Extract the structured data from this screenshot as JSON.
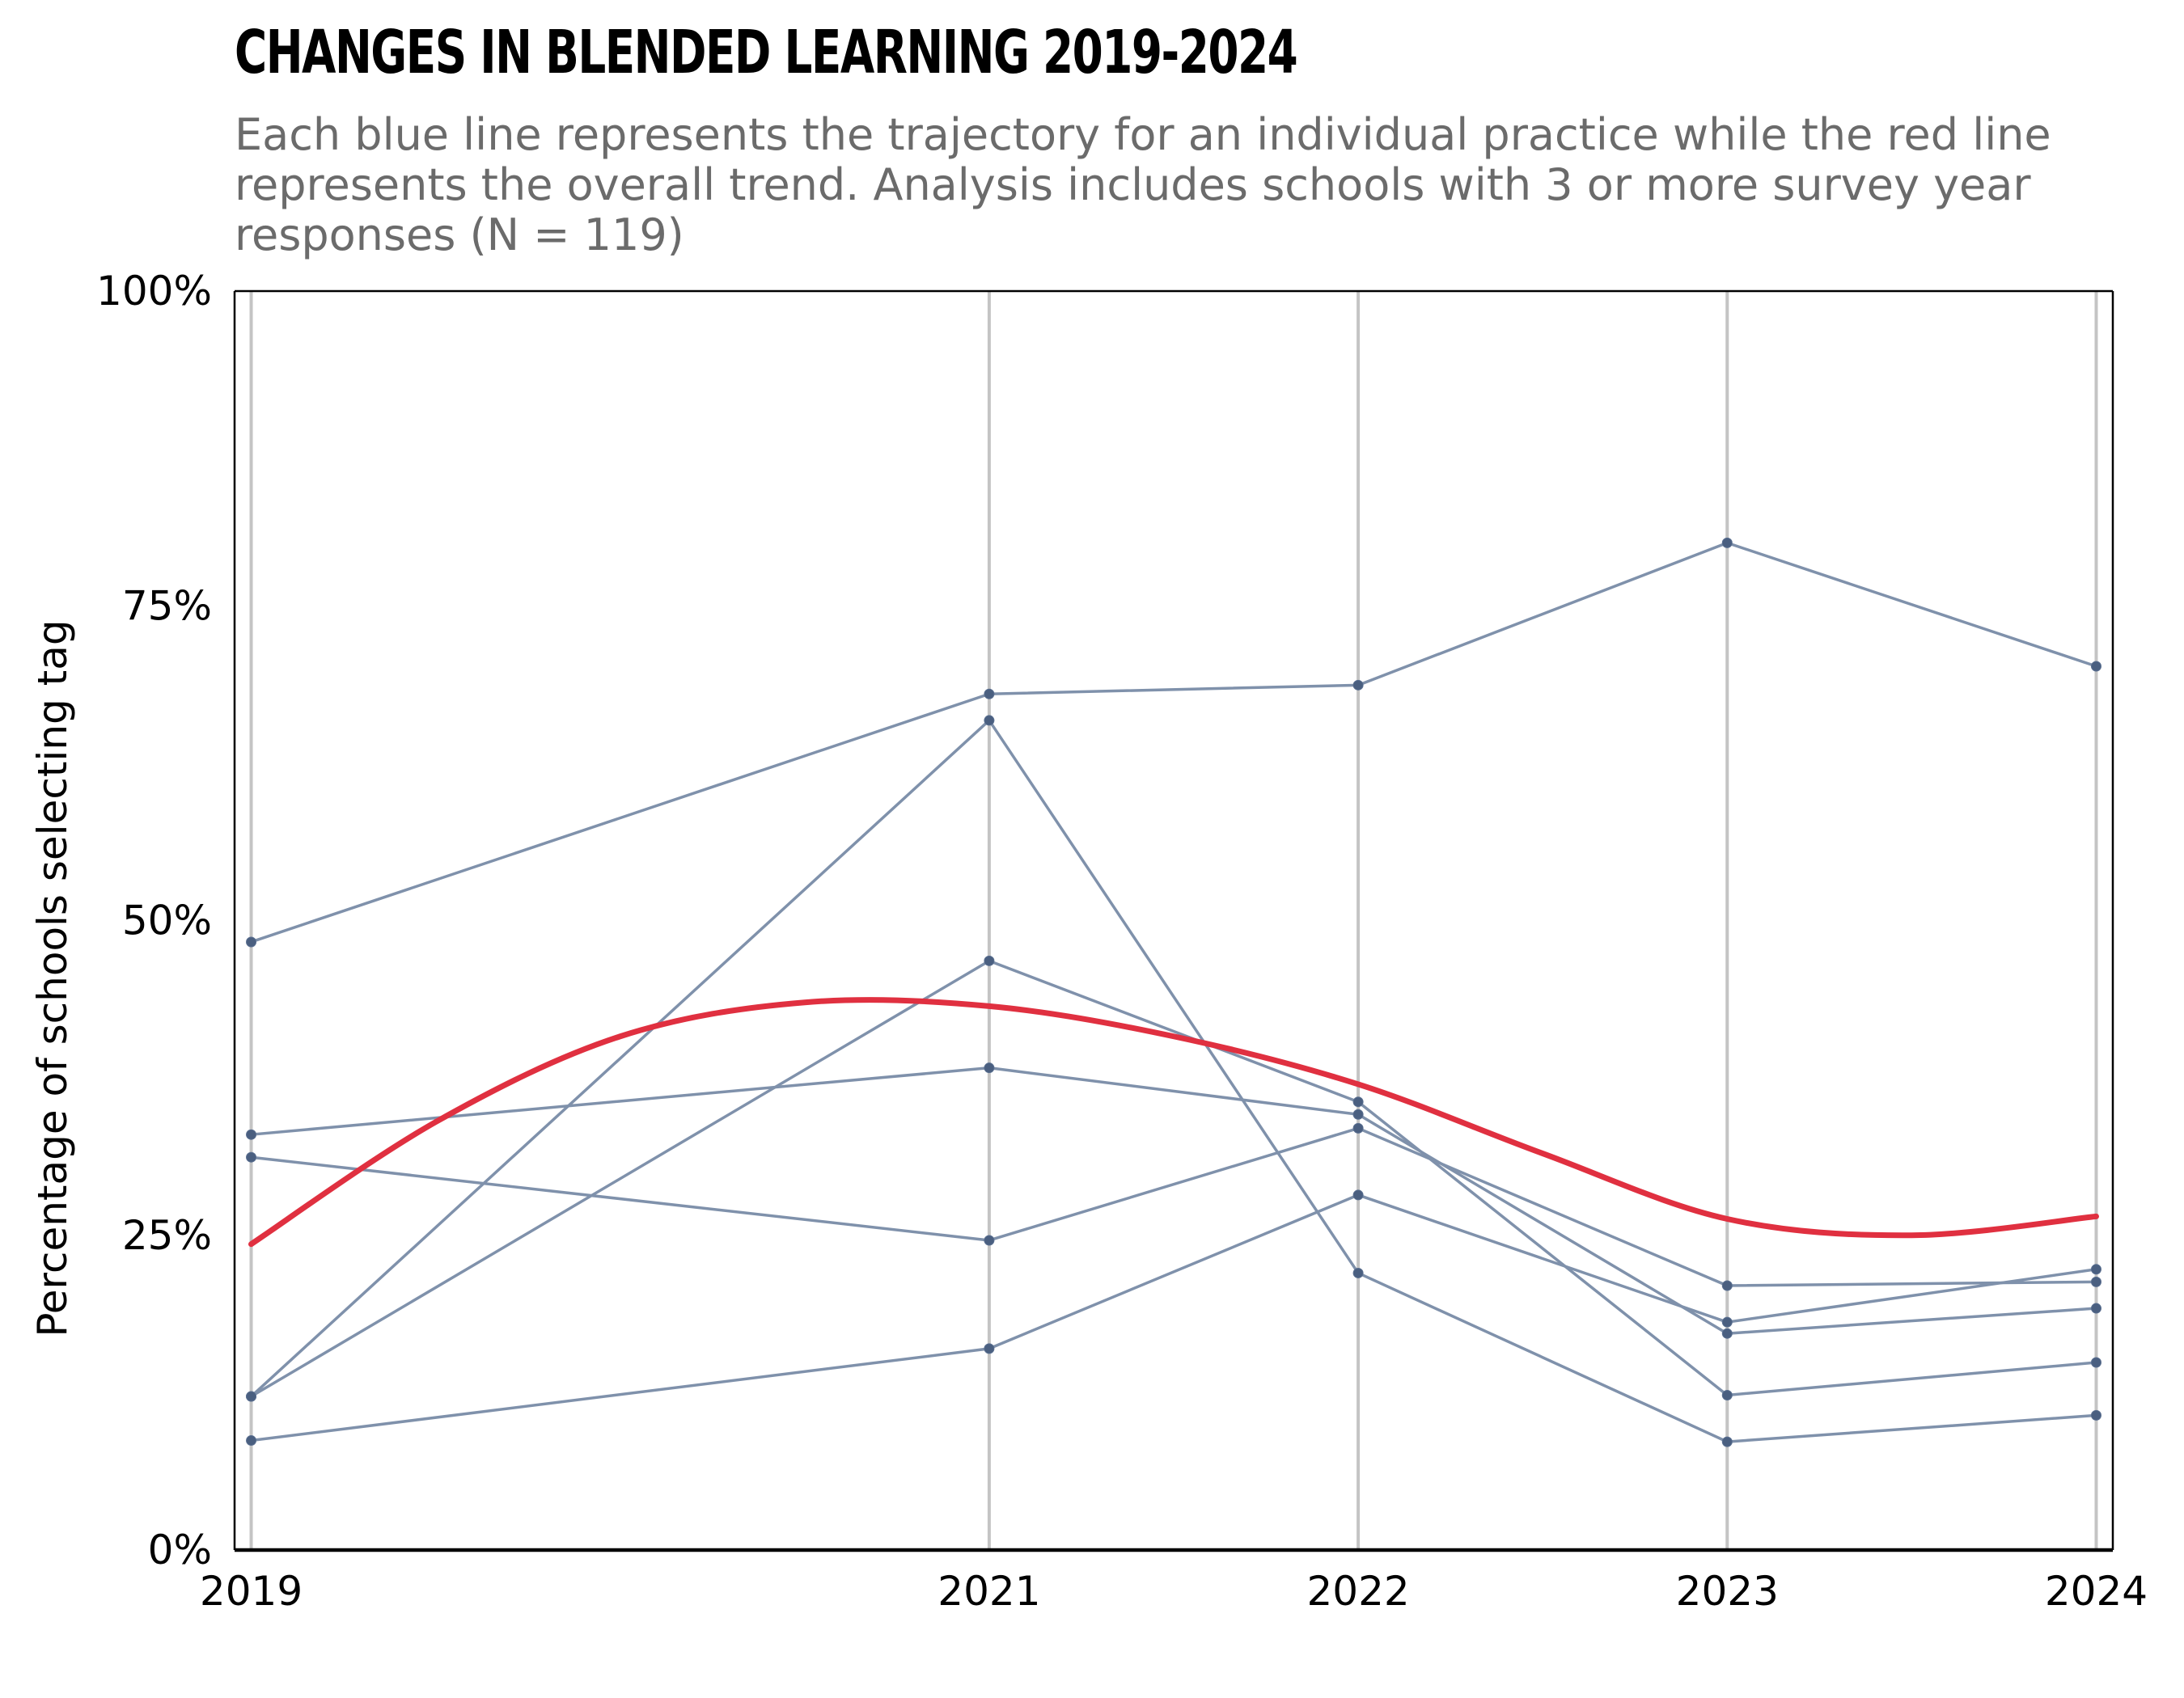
{
  "chart_data": {
    "type": "line",
    "title": "CHANGES IN BLENDED LEARNING 2019-2024",
    "subtitle": "Each blue line represents the trajectory for an individual practice while the red line represents the overall trend. Analysis includes schools with 3 or more survey year responses (N = 119)",
    "xlabel": "",
    "ylabel": "Percentage of schools selecting tag",
    "x": [
      2019,
      2021,
      2022,
      2023,
      2024
    ],
    "x_tick_labels": [
      "2019",
      "2021",
      "2022",
      "2023",
      "2024"
    ],
    "y_ticks": [
      0,
      25,
      50,
      75,
      100
    ],
    "y_tick_labels": [
      "0%",
      "25%",
      "50%",
      "75%",
      "100%"
    ],
    "ylim": [
      0,
      100
    ],
    "grid": "vertical lines at each year",
    "series": [
      {
        "values": [
          48.3,
          68.0,
          68.7,
          80.0,
          70.2
        ],
        "color": "#7f91ab"
      },
      {
        "values": [
          33.0,
          38.3,
          34.6,
          17.2,
          19.2
        ],
        "color": "#7f91ab"
      },
      {
        "values": [
          31.2,
          24.6,
          33.5,
          21.0,
          21.3
        ],
        "color": "#7f91ab"
      },
      {
        "values": [
          12.2,
          65.9,
          22.0,
          8.6,
          10.7
        ],
        "color": "#7f91ab"
      },
      {
        "values": [
          12.2,
          46.8,
          35.6,
          12.3,
          14.9
        ],
        "color": "#7f91ab"
      },
      {
        "values": [
          8.7,
          16.0,
          28.2,
          18.1,
          22.3
        ],
        "color": "#7f91ab"
      }
    ],
    "trend": {
      "color": "#e03040",
      "x": [
        2019,
        2019.5,
        2020,
        2020.5,
        2021,
        2021.5,
        2022,
        2022.5,
        2023,
        2023.5,
        2024
      ],
      "values": [
        24.3,
        34.0,
        40.8,
        43.5,
        43.2,
        40.8,
        37.0,
        31.5,
        26.3,
        25.0,
        26.5
      ]
    }
  }
}
